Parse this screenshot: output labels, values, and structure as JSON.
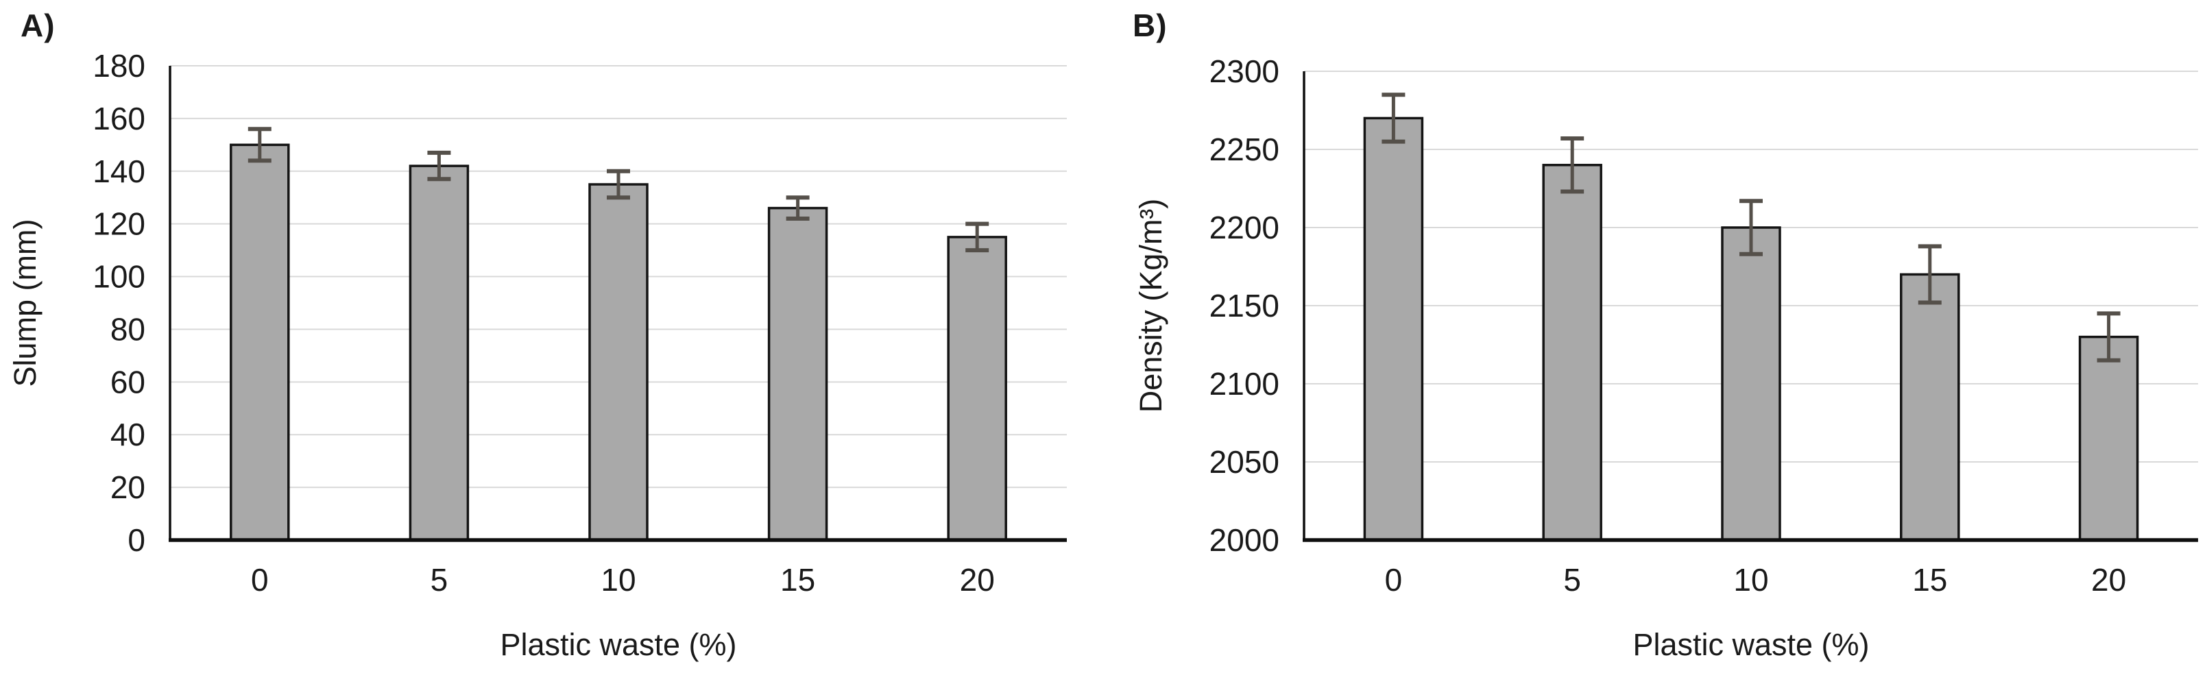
{
  "figure": {
    "panel_count": 2,
    "background": "#ffffff"
  },
  "chart_data": [
    {
      "type": "bar",
      "panel_label": "A)",
      "title": "",
      "categories": [
        "0",
        "5",
        "10",
        "15",
        "20"
      ],
      "values": [
        150,
        142,
        135,
        126,
        115
      ],
      "errors": [
        6,
        5,
        5,
        4,
        5
      ],
      "xlabel": "Plastic waste (%)",
      "ylabel": "Slump (mm)",
      "ylim": [
        0,
        180
      ],
      "ytick_step": 20,
      "ytick_labels": [
        "0",
        "20",
        "40",
        "60",
        "80",
        "100",
        "120",
        "140",
        "160",
        "180"
      ],
      "grid": true,
      "legend": "none"
    },
    {
      "type": "bar",
      "panel_label": "B)",
      "title": "",
      "categories": [
        "0",
        "5",
        "10",
        "15",
        "20"
      ],
      "values": [
        2270,
        2240,
        2200,
        2170,
        2130
      ],
      "errors": [
        15,
        17,
        17,
        18,
        15
      ],
      "xlabel": "Plastic waste (%)",
      "ylabel": "Density (Kg/m³)",
      "ylim": [
        2000,
        2300
      ],
      "ytick_step": 50,
      "ytick_labels": [
        "2000",
        "2050",
        "2100",
        "2150",
        "2200",
        "2250",
        "2300"
      ],
      "grid": true,
      "legend": "none"
    }
  ],
  "colors": {
    "bar_fill": "#a9a9a9",
    "bar_stroke": "#141414",
    "error_bar": "#55504a",
    "gridline": "#d9d9d9",
    "axis": "#0f0f0f",
    "text": "#1a1a1a",
    "background": "#ffffff"
  }
}
